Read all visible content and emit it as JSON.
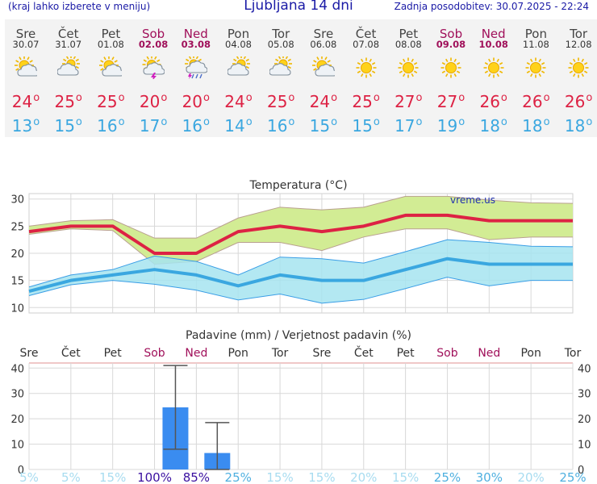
{
  "header": {
    "menu_hint": "(kraj lahko izberete v meniju)",
    "title": "Ljubljana 14 dni",
    "updated": "Zadnja posodobitev: 30.07.2025 - 22:24"
  },
  "colors": {
    "weekend": "#a0105a",
    "tmax": "#dd2244",
    "tmin": "#3aa7e0",
    "rain_bar": "#3a8cf0",
    "tmax_band": "#d2ec94",
    "tmin_band": "#a6e4f0"
  },
  "days": [
    {
      "name": "Sre",
      "date": "30.07",
      "icon": "partly-sunny-icon",
      "tmax": "24",
      "tmin": "13",
      "weekend": false
    },
    {
      "name": "Čet",
      "date": "31.07",
      "icon": "cloudy-sun-icon",
      "tmax": "25",
      "tmin": "15",
      "weekend": false
    },
    {
      "name": "Pet",
      "date": "01.08",
      "icon": "partly-sunny-icon",
      "tmax": "25",
      "tmin": "16",
      "weekend": false
    },
    {
      "name": "Sob",
      "date": "02.08",
      "icon": "thunderstorm-icon",
      "tmax": "20",
      "tmin": "17",
      "weekend": true
    },
    {
      "name": "Ned",
      "date": "03.08",
      "icon": "rain-thunder-icon",
      "tmax": "20",
      "tmin": "16",
      "weekend": true
    },
    {
      "name": "Pon",
      "date": "04.08",
      "icon": "cloudy-sun-icon",
      "tmax": "24",
      "tmin": "14",
      "weekend": false
    },
    {
      "name": "Tor",
      "date": "05.08",
      "icon": "cloudy-sun-icon",
      "tmax": "25",
      "tmin": "16",
      "weekend": false
    },
    {
      "name": "Sre",
      "date": "06.08",
      "icon": "partly-sunny-icon",
      "tmax": "24",
      "tmin": "15",
      "weekend": false
    },
    {
      "name": "Čet",
      "date": "07.08",
      "icon": "sun-icon",
      "tmax": "25",
      "tmin": "15",
      "weekend": false
    },
    {
      "name": "Pet",
      "date": "08.08",
      "icon": "sun-icon",
      "tmax": "27",
      "tmin": "17",
      "weekend": false
    },
    {
      "name": "Sob",
      "date": "09.08",
      "icon": "sun-icon",
      "tmax": "27",
      "tmin": "19",
      "weekend": true
    },
    {
      "name": "Ned",
      "date": "10.08",
      "icon": "sun-icon",
      "tmax": "26",
      "tmin": "18",
      "weekend": true
    },
    {
      "name": "Pon",
      "date": "11.08",
      "icon": "sun-icon",
      "tmax": "26",
      "tmin": "18",
      "weekend": false
    },
    {
      "name": "Tor",
      "date": "12.08",
      "icon": "sun-icon",
      "tmax": "26",
      "tmin": "18",
      "weekend": false
    }
  ],
  "chart_data": [
    {
      "type": "line",
      "title": "Temperatura (°C)",
      "watermark": "vreme.us",
      "ylim": [
        9,
        31
      ],
      "yticks": [
        "10",
        "15",
        "20",
        "25",
        "30"
      ],
      "grid": true,
      "series": [
        {
          "name": "tmax",
          "values": [
            24,
            25,
            25,
            20,
            20,
            24,
            25,
            24,
            25,
            27,
            27,
            26,
            26,
            26
          ],
          "band_low": [
            23.5,
            24.5,
            24.2,
            18,
            18.5,
            22,
            22,
            20.5,
            23,
            24.5,
            24.5,
            22.5,
            23,
            23
          ],
          "band_high": [
            25,
            26,
            26.2,
            22.8,
            22.8,
            26.5,
            28.5,
            28,
            28.5,
            30.5,
            30.5,
            29.8,
            29.3,
            29.2
          ]
        },
        {
          "name": "tmin",
          "values": [
            13,
            15,
            16,
            17,
            16,
            14,
            16,
            15,
            15,
            17,
            19,
            18,
            18,
            18
          ],
          "band_low": [
            12.2,
            14.2,
            15,
            14.3,
            13.2,
            11.4,
            12.5,
            10.8,
            11.5,
            13.5,
            15.6,
            14,
            15,
            15
          ],
          "band_high": [
            13.8,
            16,
            17,
            19.5,
            18.5,
            16,
            19.3,
            19,
            18.2,
            20.3,
            22.5,
            22,
            21.3,
            21.2
          ]
        }
      ]
    },
    {
      "type": "bar",
      "title": "Padavine (mm) / Verjetnost padavin (%)",
      "ylim": [
        0,
        42
      ],
      "yticks": [
        "0",
        "10",
        "20",
        "30",
        "40"
      ],
      "grid": true,
      "categories": [
        "Sre",
        "Čet",
        "Pet",
        "Sob",
        "Ned",
        "Pon",
        "Tor",
        "Sre",
        "Čet",
        "Pet",
        "Sob",
        "Ned",
        "Pon",
        "Tor"
      ],
      "values": [
        0,
        0,
        0,
        24.5,
        6.5,
        0,
        0,
        0,
        0,
        0,
        0,
        0,
        0,
        0
      ],
      "err_low": [
        null,
        null,
        null,
        8,
        0,
        null,
        null,
        null,
        null,
        null,
        null,
        null,
        null,
        null
      ],
      "err_high": [
        null,
        null,
        null,
        41,
        18.5,
        null,
        null,
        null,
        null,
        null,
        null,
        null,
        null,
        null
      ],
      "probability": [
        "5%",
        "5%",
        "15%",
        "100%",
        "85%",
        "25%",
        "15%",
        "15%",
        "20%",
        "15%",
        "25%",
        "30%",
        "20%",
        "25%"
      ]
    }
  ]
}
